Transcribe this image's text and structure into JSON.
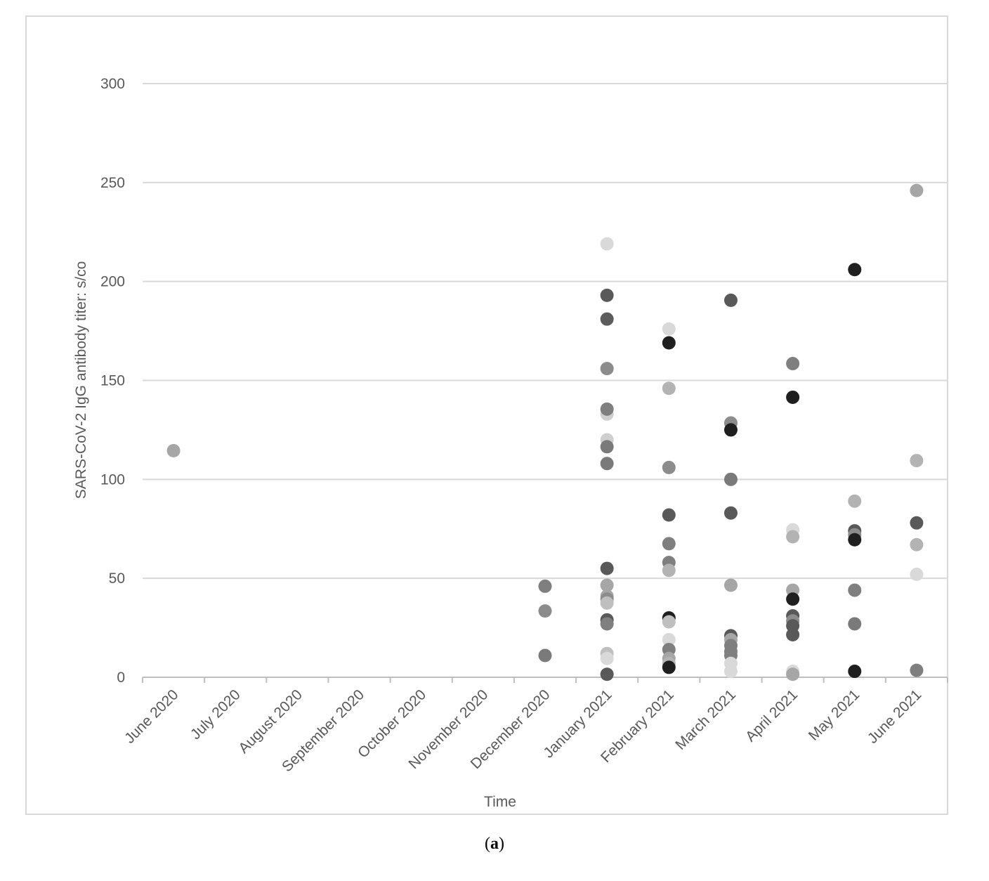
{
  "chart_data": {
    "type": "scatter",
    "xlabel": "Time",
    "ylabel": "SARS-CoV-2 IgG antibody titer: s/co",
    "ylim": [
      0,
      300
    ],
    "yticks": [
      0,
      50,
      100,
      150,
      200,
      250,
      300
    ],
    "grid": true,
    "categories": [
      "June 2020",
      "July 2020",
      "August 2020",
      "September 2020",
      "October 2020",
      "November 2020",
      "December 2020",
      "January 2021",
      "February 2021",
      "March 2021",
      "April 2021",
      "May 2021",
      "June 2021"
    ],
    "points": [
      {
        "x": "June 2020",
        "y": 114.5,
        "shade": "#a6a6a6"
      },
      {
        "x": "December 2020",
        "y": 46,
        "shade": "#7f7f7f"
      },
      {
        "x": "December 2020",
        "y": 33.5,
        "shade": "#8c8c8c"
      },
      {
        "x": "December 2020",
        "y": 11,
        "shade": "#7a7a7a"
      },
      {
        "x": "January 2021",
        "y": 219,
        "shade": "#d9d9d9"
      },
      {
        "x": "January 2021",
        "y": 193,
        "shade": "#595959"
      },
      {
        "x": "January 2021",
        "y": 181,
        "shade": "#5c5c5c"
      },
      {
        "x": "January 2021",
        "y": 156,
        "shade": "#8c8c8c"
      },
      {
        "x": "January 2021",
        "y": 133,
        "shade": "#cfcfcf"
      },
      {
        "x": "January 2021",
        "y": 135.5,
        "shade": "#7f7f7f"
      },
      {
        "x": "January 2021",
        "y": 120,
        "shade": "#cfcfcf"
      },
      {
        "x": "January 2021",
        "y": 116.5,
        "shade": "#7a7a7a"
      },
      {
        "x": "January 2021",
        "y": 108,
        "shade": "#7a7a7a"
      },
      {
        "x": "January 2021",
        "y": 55,
        "shade": "#595959"
      },
      {
        "x": "January 2021",
        "y": 46.5,
        "shade": "#a6a6a6"
      },
      {
        "x": "January 2021",
        "y": 41,
        "shade": "#a6a6a6"
      },
      {
        "x": "January 2021",
        "y": 39.5,
        "shade": "#8c8c8c"
      },
      {
        "x": "January 2021",
        "y": 37.5,
        "shade": "#bfbfbf"
      },
      {
        "x": "January 2021",
        "y": 29,
        "shade": "#595959"
      },
      {
        "x": "January 2021",
        "y": 27,
        "shade": "#7f7f7f"
      },
      {
        "x": "January 2021",
        "y": 12,
        "shade": "#bfbfbf"
      },
      {
        "x": "January 2021",
        "y": 9.5,
        "shade": "#d9d9d9"
      },
      {
        "x": "January 2021",
        "y": 1.5,
        "shade": "#595959"
      },
      {
        "x": "February 2021",
        "y": 176,
        "shade": "#d9d9d9"
      },
      {
        "x": "February 2021",
        "y": 169,
        "shade": "#1f1f1f"
      },
      {
        "x": "February 2021",
        "y": 146,
        "shade": "#b3b3b3"
      },
      {
        "x": "February 2021",
        "y": 106,
        "shade": "#8c8c8c"
      },
      {
        "x": "February 2021",
        "y": 82,
        "shade": "#595959"
      },
      {
        "x": "February 2021",
        "y": 67.5,
        "shade": "#7f7f7f"
      },
      {
        "x": "February 2021",
        "y": 58,
        "shade": "#7f7f7f"
      },
      {
        "x": "February 2021",
        "y": 54,
        "shade": "#b3b3b3"
      },
      {
        "x": "February 2021",
        "y": 30,
        "shade": "#1f1f1f"
      },
      {
        "x": "February 2021",
        "y": 28,
        "shade": "#bfbfbf"
      },
      {
        "x": "February 2021",
        "y": 19,
        "shade": "#d9d9d9"
      },
      {
        "x": "February 2021",
        "y": 14,
        "shade": "#7f7f7f"
      },
      {
        "x": "February 2021",
        "y": 9.5,
        "shade": "#a6a6a6"
      },
      {
        "x": "February 2021",
        "y": 7,
        "shade": "#b3b3b3"
      },
      {
        "x": "February 2021",
        "y": 5,
        "shade": "#1f1f1f"
      },
      {
        "x": "March 2021",
        "y": 190.5,
        "shade": "#595959"
      },
      {
        "x": "March 2021",
        "y": 128.5,
        "shade": "#8c8c8c"
      },
      {
        "x": "March 2021",
        "y": 125,
        "shade": "#1f1f1f"
      },
      {
        "x": "March 2021",
        "y": 100,
        "shade": "#7a7a7a"
      },
      {
        "x": "March 2021",
        "y": 83,
        "shade": "#595959"
      },
      {
        "x": "March 2021",
        "y": 46.5,
        "shade": "#a6a6a6"
      },
      {
        "x": "March 2021",
        "y": 21,
        "shade": "#595959"
      },
      {
        "x": "March 2021",
        "y": 19,
        "shade": "#a6a6a6"
      },
      {
        "x": "March 2021",
        "y": 16,
        "shade": "#7f7f7f"
      },
      {
        "x": "March 2021",
        "y": 13,
        "shade": "#7f7f7f"
      },
      {
        "x": "March 2021",
        "y": 11,
        "shade": "#7f7f7f"
      },
      {
        "x": "March 2021",
        "y": 7,
        "shade": "#d9d9d9"
      },
      {
        "x": "March 2021",
        "y": 3,
        "shade": "#d9d9d9"
      },
      {
        "x": "April 2021",
        "y": 158.5,
        "shade": "#7f7f7f"
      },
      {
        "x": "April 2021",
        "y": 141.5,
        "shade": "#1f1f1f"
      },
      {
        "x": "April 2021",
        "y": 74.5,
        "shade": "#d9d9d9"
      },
      {
        "x": "April 2021",
        "y": 71,
        "shade": "#b3b3b3"
      },
      {
        "x": "April 2021",
        "y": 44,
        "shade": "#a6a6a6"
      },
      {
        "x": "April 2021",
        "y": 39.5,
        "shade": "#1f1f1f"
      },
      {
        "x": "April 2021",
        "y": 31,
        "shade": "#595959"
      },
      {
        "x": "April 2021",
        "y": 28.5,
        "shade": "#8c8c8c"
      },
      {
        "x": "April 2021",
        "y": 26,
        "shade": "#595959"
      },
      {
        "x": "April 2021",
        "y": 21.5,
        "shade": "#595959"
      },
      {
        "x": "April 2021",
        "y": 3,
        "shade": "#d9d9d9"
      },
      {
        "x": "April 2021",
        "y": 1.5,
        "shade": "#a6a6a6"
      },
      {
        "x": "May 2021",
        "y": 206,
        "shade": "#1f1f1f"
      },
      {
        "x": "May 2021",
        "y": 89,
        "shade": "#b3b3b3"
      },
      {
        "x": "May 2021",
        "y": 74,
        "shade": "#595959"
      },
      {
        "x": "May 2021",
        "y": 72,
        "shade": "#8c8c8c"
      },
      {
        "x": "May 2021",
        "y": 69.5,
        "shade": "#1f1f1f"
      },
      {
        "x": "May 2021",
        "y": 44,
        "shade": "#7f7f7f"
      },
      {
        "x": "May 2021",
        "y": 27,
        "shade": "#7a7a7a"
      },
      {
        "x": "May 2021",
        "y": 3,
        "shade": "#1f1f1f"
      },
      {
        "x": "June 2021",
        "y": 246,
        "shade": "#a6a6a6"
      },
      {
        "x": "June 2021",
        "y": 109.5,
        "shade": "#b3b3b3"
      },
      {
        "x": "June 2021",
        "y": 78,
        "shade": "#595959"
      },
      {
        "x": "June 2021",
        "y": 67,
        "shade": "#b3b3b3"
      },
      {
        "x": "June 2021",
        "y": 52,
        "shade": "#d9d9d9"
      },
      {
        "x": "June 2021",
        "y": 3.5,
        "shade": "#7f7f7f"
      }
    ]
  },
  "caption": {
    "open": "(",
    "letter": "a",
    "close": ")"
  }
}
